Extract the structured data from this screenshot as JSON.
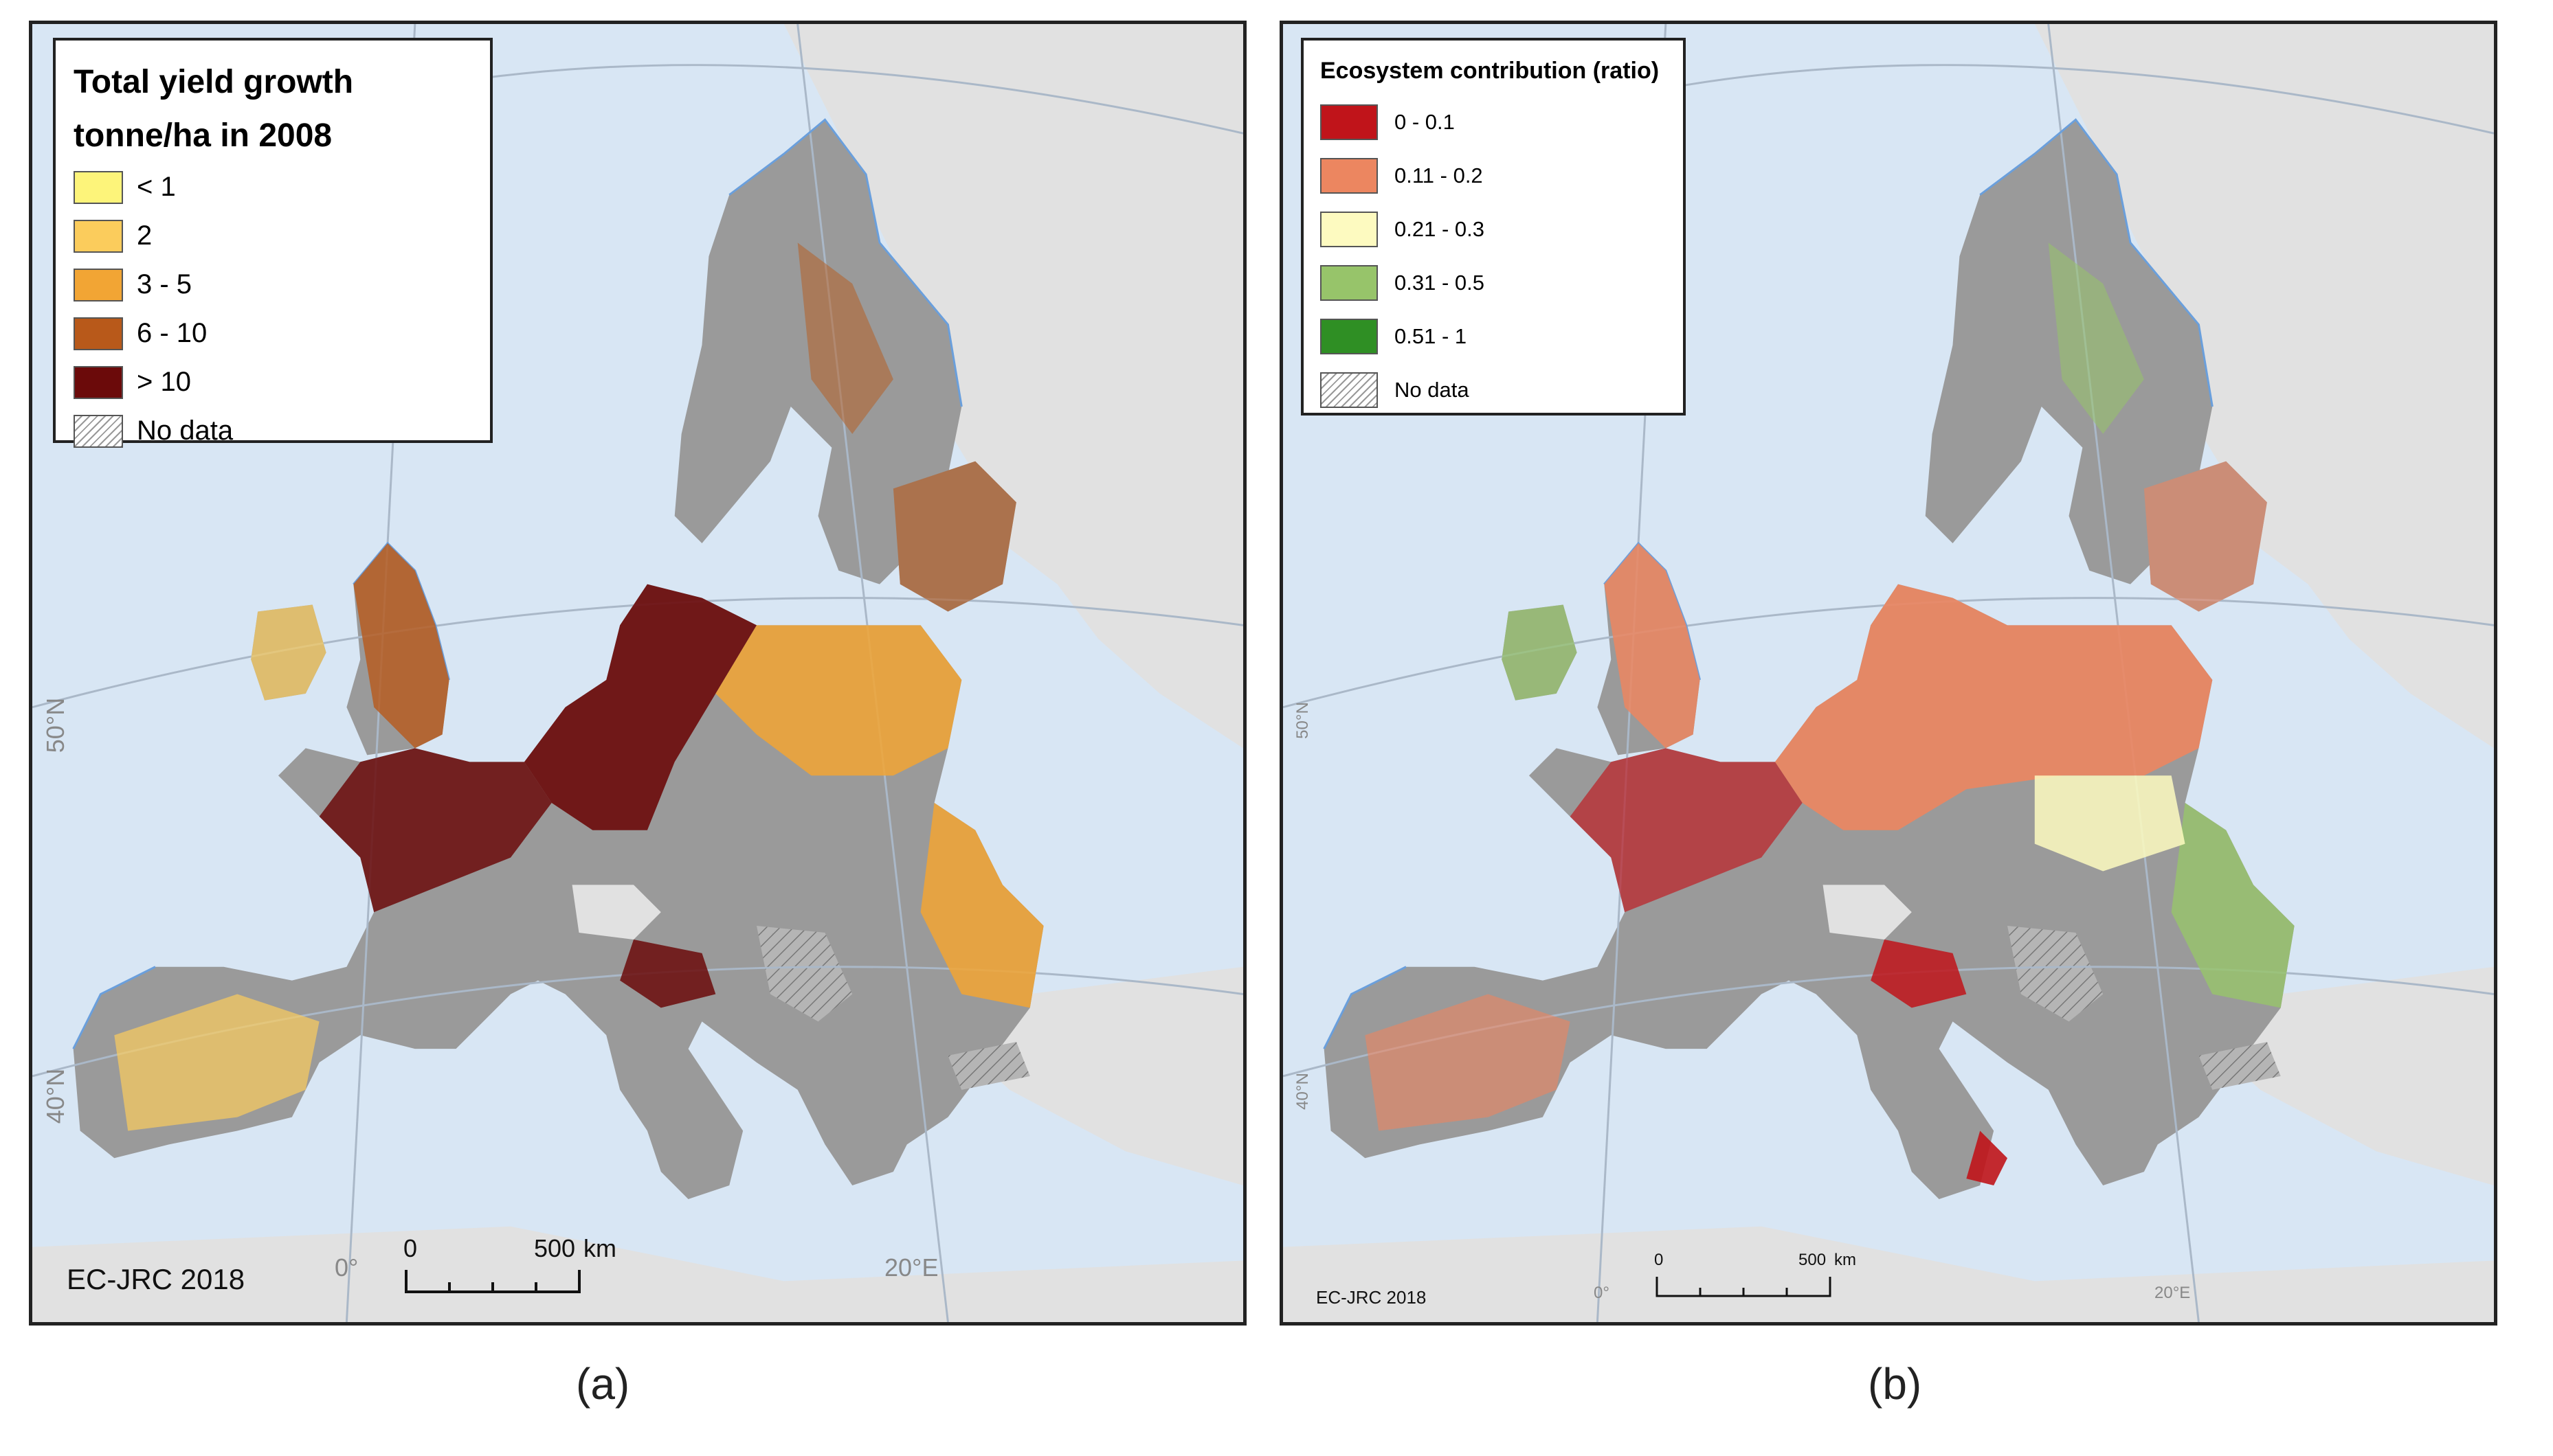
{
  "panel_a": {
    "legend": {
      "title_line1": "Total yield growth",
      "title_line2": "tonne/ha in 2008",
      "items": [
        {
          "label": "< 1",
          "color": "#fdf47a"
        },
        {
          "label": "2",
          "color": "#fbcc5c"
        },
        {
          "label": "3 - 5",
          "color": "#f2a534"
        },
        {
          "label": "6 - 10",
          "color": "#b8591a"
        },
        {
          "label": "> 10",
          "color": "#6b0a0a"
        },
        {
          "label": "No data",
          "color": "hatch"
        }
      ]
    },
    "credit": "EC-JRC 2018",
    "scalebar": {
      "start": "0",
      "end": "500",
      "unit": "km"
    },
    "graticule": {
      "lat_50": "50°N",
      "lat_40": "40°N",
      "lon_0": "0°",
      "lon_20": "20°E"
    }
  },
  "panel_b": {
    "legend": {
      "title": "Ecosystem contribution (ratio)",
      "items": [
        {
          "label": "0 - 0.1",
          "color": "#c0141a"
        },
        {
          "label": "0.11 - 0.2",
          "color": "#ec8660"
        },
        {
          "label": "0.21 - 0.3",
          "color": "#fdfac0"
        },
        {
          "label": "0.31 - 0.5",
          "color": "#97c46a"
        },
        {
          "label": "0.51 - 1",
          "color": "#2f8f24"
        },
        {
          "label": "No data",
          "color": "hatch"
        }
      ]
    },
    "credit": "EC-JRC 2018",
    "scalebar": {
      "start": "0",
      "end": "500",
      "unit": "km"
    },
    "graticule": {
      "lat_50": "50°N",
      "lat_40": "40°N",
      "lon_0": "0°",
      "lon_20": "20°E"
    }
  },
  "captions": {
    "a": "(a)",
    "b": "(b)"
  },
  "colors": {
    "sea": "#d8e6f4",
    "land_outside": "#e1e1e1",
    "land_nodata": "#9a9a9a",
    "coast_line": "#6a9fdc"
  }
}
